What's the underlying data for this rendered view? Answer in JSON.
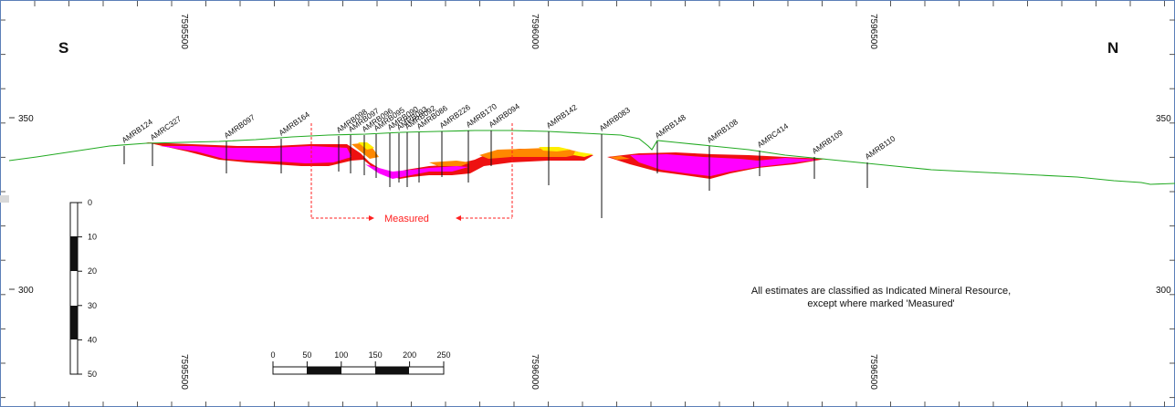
{
  "section": {
    "left_direction": "S",
    "right_direction": "N",
    "top_eastings": [
      "7595500",
      "7596000",
      "7596500"
    ],
    "bottom_eastings": [
      "7595500",
      "7596000",
      "7596500"
    ],
    "elevation_labels_left": [
      "350",
      "300"
    ],
    "elevation_labels_right": [
      "350",
      "300"
    ],
    "measured_label": "Measured",
    "note_line1": "All estimates are classified as Indicated Mineral Resource,",
    "note_line2": "except where marked 'Measured'"
  },
  "drillholes": [
    {
      "name": "AMRB124"
    },
    {
      "name": "AMRC327"
    },
    {
      "name": "AMRB097"
    },
    {
      "name": "AMRB164"
    },
    {
      "name": "AMRB098"
    },
    {
      "name": "AMRB097"
    },
    {
      "name": "AMRB096"
    },
    {
      "name": "AMRB095"
    },
    {
      "name": "AMRB090"
    },
    {
      "name": "AMRB093"
    },
    {
      "name": "AMRB092"
    },
    {
      "name": "AMRB086"
    },
    {
      "name": "AMRB226"
    },
    {
      "name": "AMRB170"
    },
    {
      "name": "AMRB094"
    },
    {
      "name": "AMRB142"
    },
    {
      "name": "AMRB083"
    },
    {
      "name": "AMRB148"
    },
    {
      "name": "AMRB108"
    },
    {
      "name": "AMRC414"
    },
    {
      "name": "AMRB109"
    },
    {
      "name": "AMRB110"
    }
  ],
  "vertical_scale": {
    "labels": [
      "0",
      "10",
      "20",
      "30",
      "40",
      "50"
    ]
  },
  "horizontal_scale": {
    "labels": [
      "0",
      "50",
      "100",
      "150",
      "200",
      "250"
    ]
  },
  "colors": {
    "topography": "#22aa22",
    "magenta": "#ff00ff",
    "red": "#ee1111",
    "orange": "#ff8800",
    "yellow": "#ffee00",
    "measured": "#ff2020",
    "frame": "#5b7fb8"
  }
}
